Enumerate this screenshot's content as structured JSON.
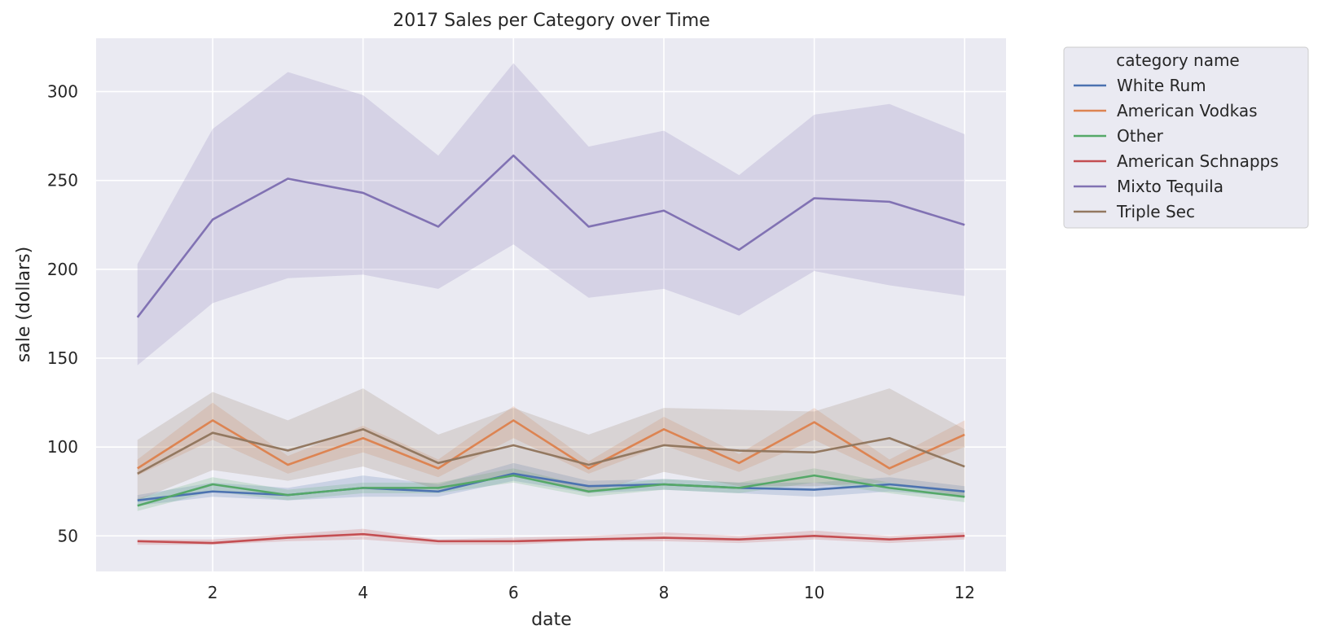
{
  "chart_data": {
    "type": "line",
    "title": "2017 Sales per Category over Time",
    "xlabel": "date",
    "ylabel": "sale (dollars)",
    "xlim": [
      0.45,
      12.55
    ],
    "ylim": [
      30,
      330
    ],
    "xticks": [
      2,
      4,
      6,
      8,
      10,
      12
    ],
    "yticks": [
      50,
      100,
      150,
      200,
      250,
      300
    ],
    "grid": true,
    "legend": {
      "title": "category name",
      "position": "outside-top-right"
    },
    "x": [
      1,
      2,
      3,
      4,
      5,
      6,
      7,
      8,
      9,
      10,
      11,
      12
    ],
    "series": [
      {
        "name": "White Rum",
        "color": "#4c72b0",
        "values": [
          70,
          75,
          73,
          77,
          75,
          85,
          78,
          79,
          77,
          76,
          79,
          75
        ],
        "lower": [
          67,
          72,
          70,
          72,
          72,
          81,
          74,
          76,
          74,
          72,
          75,
          72
        ],
        "upper": [
          73,
          80,
          77,
          84,
          79,
          91,
          81,
          82,
          80,
          80,
          83,
          78
        ]
      },
      {
        "name": "American Vodkas",
        "color": "#dd8452",
        "values": [
          88,
          115,
          90,
          105,
          88,
          115,
          88,
          110,
          91,
          114,
          88,
          107
        ],
        "lower": [
          84,
          104,
          85,
          97,
          83,
          105,
          85,
          101,
          86,
          104,
          84,
          100
        ],
        "upper": [
          93,
          125,
          95,
          112,
          93,
          123,
          92,
          117,
          96,
          122,
          93,
          115
        ]
      },
      {
        "name": "Other",
        "color": "#55a868",
        "values": [
          67,
          79,
          73,
          77,
          77,
          84,
          75,
          79,
          77,
          84,
          77,
          72
        ],
        "lower": [
          64,
          75,
          70,
          74,
          74,
          80,
          72,
          76,
          74,
          80,
          74,
          69
        ],
        "upper": [
          71,
          83,
          76,
          80,
          80,
          88,
          78,
          82,
          80,
          88,
          80,
          75
        ]
      },
      {
        "name": "American Schnapps",
        "color": "#c44e52",
        "values": [
          47,
          46,
          49,
          51,
          47,
          47,
          48,
          49,
          48,
          50,
          48,
          50
        ],
        "lower": [
          45,
          45,
          47,
          48,
          45,
          45,
          47,
          47,
          46,
          48,
          46,
          48
        ],
        "upper": [
          48,
          48,
          51,
          54,
          48,
          49,
          50,
          52,
          50,
          53,
          50,
          52
        ]
      },
      {
        "name": "Mixto Tequila",
        "color": "#8172b3",
        "values": [
          173,
          228,
          251,
          243,
          224,
          264,
          224,
          233,
          211,
          240,
          238,
          225
        ],
        "lower": [
          146,
          181,
          195,
          197,
          189,
          214,
          184,
          189,
          174,
          199,
          191,
          185
        ],
        "upper": [
          203,
          279,
          311,
          298,
          264,
          316,
          269,
          278,
          253,
          287,
          293,
          276
        ]
      },
      {
        "name": "Triple Sec",
        "color": "#937860",
        "values": [
          85,
          108,
          98,
          110,
          91,
          101,
          90,
          101,
          98,
          97,
          105,
          89
        ],
        "lower": [
          70,
          87,
          81,
          89,
          76,
          85,
          74,
          86,
          78,
          78,
          80,
          72
        ],
        "upper": [
          104,
          131,
          115,
          133,
          107,
          122,
          107,
          122,
          121,
          120,
          133,
          110
        ]
      }
    ]
  }
}
